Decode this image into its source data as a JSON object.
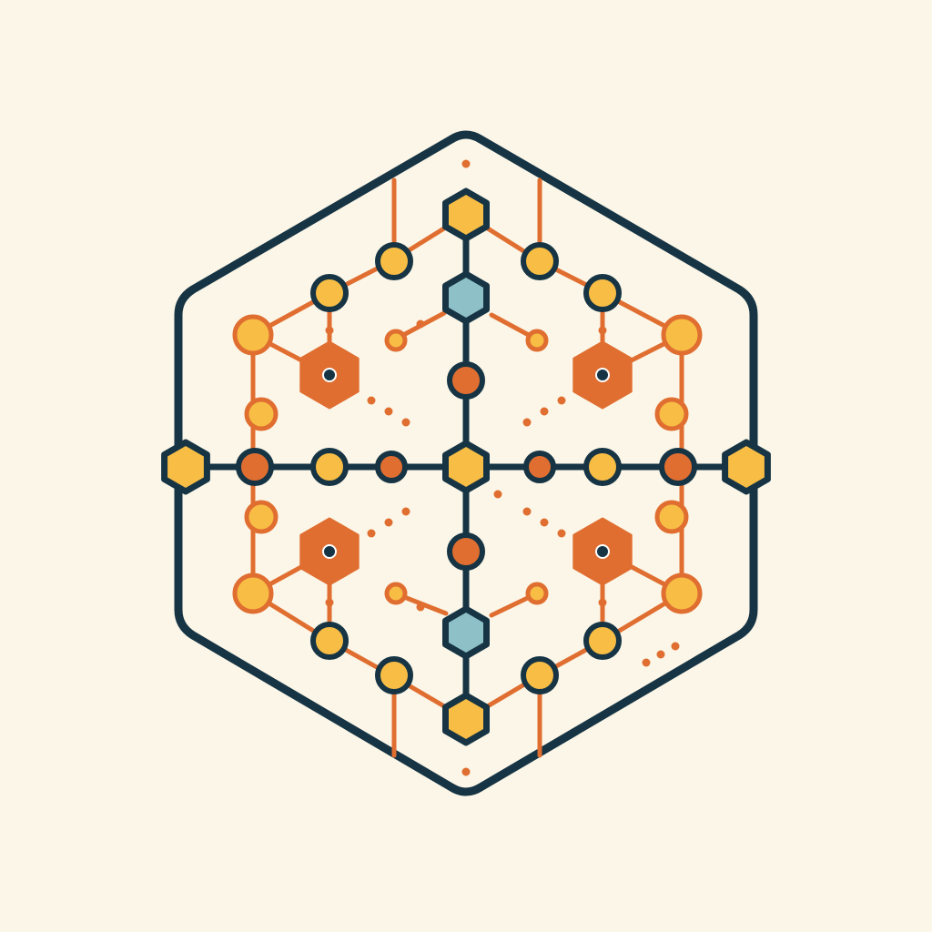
{
  "palette": {
    "background": "#fbf6e7",
    "outline": "#163444",
    "connector": "#e06e30",
    "orange": "#e06e30",
    "yellow": "#f7bd45",
    "teal": "#8ec0c7"
  },
  "diagram": {
    "nodes": [
      {
        "id": "top",
        "shape": "hexagon",
        "fill": "yellow",
        "stroke": "outline"
      },
      {
        "id": "bottom",
        "shape": "hexagon",
        "fill": "yellow",
        "stroke": "outline"
      },
      {
        "id": "left-terminal",
        "shape": "hexagon",
        "fill": "yellow",
        "stroke": "outline"
      },
      {
        "id": "right-terminal",
        "shape": "hexagon",
        "fill": "yellow",
        "stroke": "outline"
      },
      {
        "id": "center",
        "shape": "hexagon",
        "fill": "yellow",
        "stroke": "outline"
      },
      {
        "id": "upper-teal",
        "shape": "hexagon",
        "fill": "teal",
        "stroke": "outline"
      },
      {
        "id": "lower-teal",
        "shape": "hexagon",
        "fill": "teal",
        "stroke": "outline"
      },
      {
        "id": "upper-left-hub",
        "shape": "hexagon",
        "fill": "orange",
        "stroke": "connector"
      },
      {
        "id": "upper-right-hub",
        "shape": "hexagon",
        "fill": "orange",
        "stroke": "connector"
      },
      {
        "id": "lower-left-hub",
        "shape": "hexagon",
        "fill": "orange",
        "stroke": "connector"
      },
      {
        "id": "lower-right-hub",
        "shape": "hexagon",
        "fill": "orange",
        "stroke": "connector"
      }
    ]
  }
}
